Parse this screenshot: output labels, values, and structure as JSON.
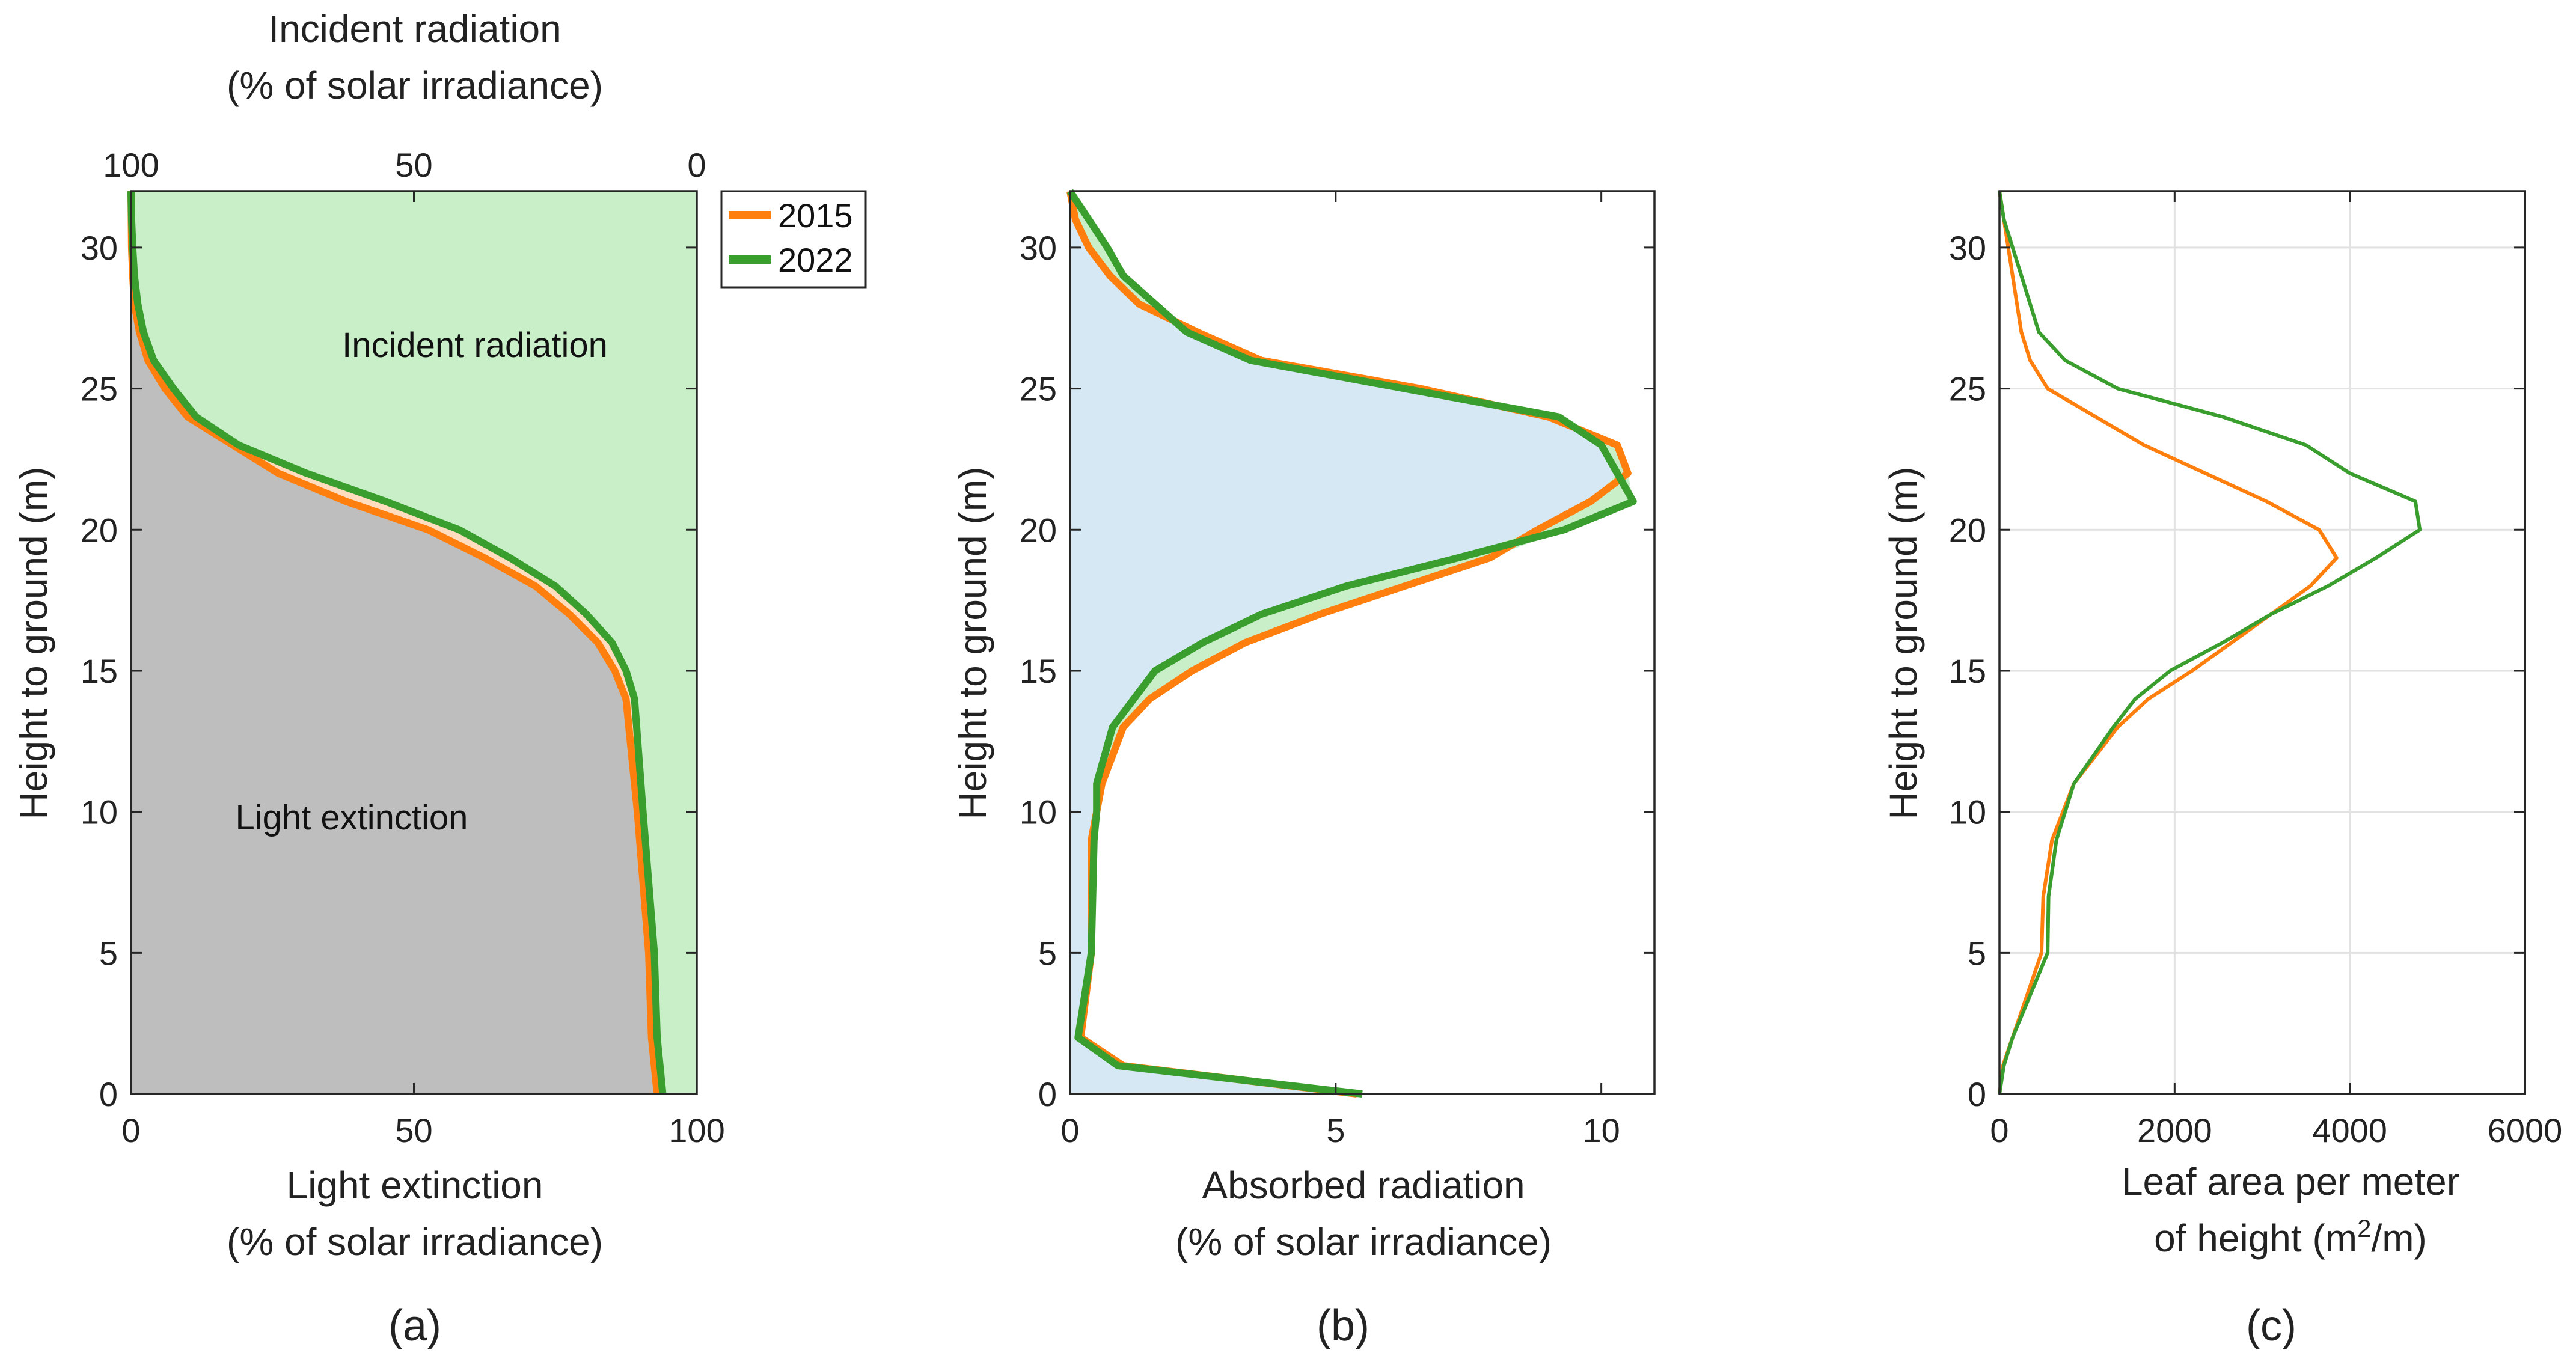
{
  "colors": {
    "series_2015": "#FF7F0E",
    "series_2022": "#3A9E2E",
    "incident_fill": "#C9EFC9",
    "extinction_fill": "#BEBEBE",
    "band_2015_fill": "#FFDDBE",
    "absorbed_fill": "#D6E8F3",
    "grid": "#E2E2E2",
    "axis": "#262626"
  },
  "chart_data": [
    {
      "type": "area",
      "panel_label": "(a)",
      "xlabel": [
        "Light extinction",
        "(% of solar irradiance)"
      ],
      "x2label": [
        "Incident radiation",
        "(% of solar irradiance)"
      ],
      "ylabel": "Height to ground (m)",
      "xlim": [
        0,
        100
      ],
      "ylim": [
        0,
        32
      ],
      "x_ticks": [
        0,
        50,
        100
      ],
      "x2_ticks": [
        100,
        50,
        0
      ],
      "y_ticks": [
        0,
        5,
        10,
        15,
        20,
        25,
        30
      ],
      "grid": false,
      "annotations": [
        "Incident radiation",
        "Light extinction"
      ],
      "legend": {
        "placement": "outside-top-right",
        "entries": [
          "2015",
          "2022"
        ]
      },
      "series": [
        {
          "name": "2015",
          "y": [
            0,
            1,
            2,
            5,
            10,
            14,
            15,
            16,
            17,
            18,
            19,
            20,
            21,
            22,
            23,
            24,
            25,
            26,
            27,
            28,
            29,
            30,
            31,
            32
          ],
          "x": [
            93,
            92.5,
            92,
            91.5,
            89.5,
            87.5,
            85.5,
            82.5,
            77.5,
            71.5,
            62.5,
            52.5,
            38,
            26,
            18,
            10,
            6,
            3,
            1.5,
            0.6,
            0.3,
            0.1,
            0.05,
            0
          ]
        },
        {
          "name": "2022",
          "y": [
            0,
            1,
            2,
            5,
            10,
            14,
            15,
            16,
            17,
            18,
            19,
            20,
            21,
            22,
            23,
            24,
            25,
            26,
            27,
            28,
            29,
            30,
            31,
            32
          ],
          "x": [
            94,
            93.5,
            93,
            92.5,
            90.5,
            89,
            87.5,
            85,
            80.5,
            75,
            67,
            58,
            45,
            31,
            19,
            11.5,
            7.5,
            4,
            2.2,
            1.2,
            0.6,
            0.3,
            0.1,
            0
          ]
        }
      ]
    },
    {
      "type": "area",
      "panel_label": "(b)",
      "xlabel": [
        "Absorbed radiation",
        "(% of solar irradiance)"
      ],
      "ylabel": "Height to ground (m)",
      "xlim": [
        0,
        11
      ],
      "ylim": [
        0,
        32
      ],
      "x_ticks": [
        0,
        5,
        10
      ],
      "y_ticks": [
        0,
        5,
        10,
        15,
        20,
        25,
        30
      ],
      "grid": false,
      "series": [
        {
          "name": "2015",
          "y": [
            0,
            1,
            2,
            5,
            9,
            10,
            11,
            13,
            14,
            15,
            16,
            17,
            18,
            19,
            20,
            21,
            22,
            23,
            24,
            25,
            26,
            27,
            28,
            29,
            30,
            31,
            32
          ],
          "x": [
            5.4,
            1,
            0.2,
            0.4,
            0.4,
            0.5,
            0.6,
            1.0,
            1.5,
            2.3,
            3.3,
            4.7,
            6.3,
            7.9,
            8.8,
            9.8,
            10.5,
            10.3,
            9.0,
            6.6,
            3.6,
            2.4,
            1.3,
            0.75,
            0.35,
            0.1,
            0
          ]
        },
        {
          "name": "2022",
          "y": [
            0,
            1,
            2,
            5,
            9,
            10,
            11,
            13,
            14,
            15,
            16,
            17,
            18,
            19,
            20,
            21,
            22,
            23,
            24,
            25,
            26,
            27,
            28,
            29,
            30,
            31,
            32
          ],
          "x": [
            5.5,
            0.9,
            0.15,
            0.4,
            0.45,
            0.5,
            0.5,
            0.8,
            1.2,
            1.6,
            2.5,
            3.6,
            5.2,
            7.3,
            9.3,
            10.6,
            10.3,
            10.0,
            9.2,
            6.3,
            3.4,
            2.2,
            1.6,
            1.0,
            0.7,
            0.35,
            0
          ]
        }
      ]
    },
    {
      "type": "line",
      "panel_label": "(c)",
      "xlabel": [
        "Leaf area per meter",
        "of height (m",
        "2",
        "/m)"
      ],
      "ylabel": "Height to ground (m)",
      "xlim": [
        0,
        6000
      ],
      "ylim": [
        0,
        32
      ],
      "x_ticks": [
        0,
        2000,
        4000,
        6000
      ],
      "x_tick_labels": [
        "0",
        "2000",
        "4000",
        "6000"
      ],
      "y_ticks": [
        0,
        5,
        10,
        15,
        20,
        25,
        30
      ],
      "grid": true,
      "series": [
        {
          "name": "2015",
          "y": [
            0,
            1,
            2,
            5,
            7,
            9,
            11,
            13,
            14,
            15,
            16,
            17,
            18,
            19,
            20,
            21,
            22,
            23,
            24,
            25,
            26,
            27,
            28,
            29,
            30,
            31,
            32
          ],
          "x": [
            0,
            40,
            150,
            480,
            500,
            600,
            850,
            1350,
            1700,
            2200,
            2650,
            3100,
            3550,
            3850,
            3650,
            3050,
            2350,
            1650,
            1100,
            550,
            350,
            250,
            200,
            150,
            100,
            50,
            0
          ]
        },
        {
          "name": "2022",
          "y": [
            0,
            1,
            2,
            5,
            7,
            9,
            11,
            13,
            14,
            15,
            16,
            17,
            18,
            19,
            20,
            21,
            22,
            23,
            24,
            25,
            26,
            27,
            28,
            29,
            30,
            31,
            32
          ],
          "x": [
            0,
            50,
            150,
            550,
            560,
            650,
            850,
            1300,
            1550,
            1950,
            2550,
            3100,
            3750,
            4300,
            4800,
            4750,
            4000,
            3500,
            2550,
            1350,
            750,
            450,
            350,
            250,
            150,
            50,
            0
          ]
        }
      ]
    }
  ]
}
